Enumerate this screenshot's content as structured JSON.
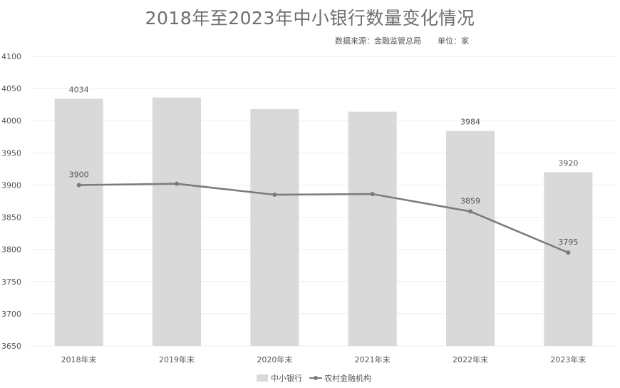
{
  "title": "2018年至2023年中小银行数量变化情况",
  "source": "数据来源：金融监管总局",
  "unit": "单位：家",
  "chart_data": {
    "type": "bar",
    "categories": [
      "2018年末",
      "2019年末",
      "2020年末",
      "2021年末",
      "2022年末",
      "2023年末"
    ],
    "series": [
      {
        "name": "中小银行",
        "type": "bar",
        "values": [
          4034,
          4036,
          4018,
          4014,
          3984,
          3920
        ],
        "labels": [
          "4034",
          "",
          "",
          "",
          "3984",
          "3920"
        ]
      },
      {
        "name": "农村金融机构",
        "type": "line",
        "values": [
          3900,
          3902,
          3885,
          3886,
          3859,
          3795
        ],
        "labels": [
          "3900",
          "",
          "",
          "",
          "3859",
          "3795"
        ]
      }
    ],
    "ylim": [
      3650,
      4100
    ],
    "yticks": [
      "3650",
      "3700",
      "3750",
      "3800",
      "3850",
      "3900",
      "3950",
      "4000",
      "4050",
      "4100"
    ],
    "grid": true,
    "legend_position": "bottom",
    "colors": {
      "bar": "#d9d9d9",
      "line": "#7a7a7a",
      "grid": "#eeeeee"
    }
  }
}
